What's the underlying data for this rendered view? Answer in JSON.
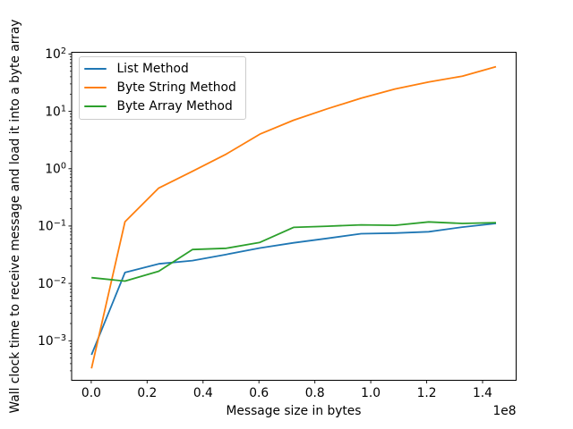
{
  "chart_data": {
    "type": "line",
    "title": "",
    "xlabel": "Message size in bytes",
    "ylabel": "Wall clock time to receive message and load it into a byte array",
    "x_offset_text": "1e8",
    "x_scale": "linear",
    "y_scale": "log",
    "grid": false,
    "legend_position": "upper left",
    "xlim": [
      -7000000,
      152000000
    ],
    "ylim": [
      0.000205,
      107
    ],
    "x_ticks": [
      0,
      20000000,
      40000000,
      60000000,
      80000000,
      100000000,
      120000000,
      140000000
    ],
    "x_tick_labels": [
      "0.0",
      "0.2",
      "0.4",
      "0.6",
      "0.8",
      "1.0",
      "1.2",
      "1.4"
    ],
    "y_tick_exponents": [
      2,
      1,
      0,
      -1,
      -2,
      -3
    ],
    "y_tick_labels": [
      "10²",
      "10¹",
      "10⁰",
      "10⁻¹",
      "10⁻²",
      "10⁻³"
    ],
    "x": [
      100000,
      12100000,
      24150000,
      36200000,
      48300000,
      60350000,
      72400000,
      84500000,
      96550000,
      108600000,
      120700000,
      132750000,
      144800000
    ],
    "series": [
      {
        "name": "List Method",
        "color": "#1f77b4",
        "values": [
          0.00057,
          0.0155,
          0.022,
          0.025,
          0.032,
          0.0415,
          0.051,
          0.061,
          0.0735,
          0.0755,
          0.0795,
          0.096,
          0.111
        ]
      },
      {
        "name": "Byte String Method",
        "color": "#ff7f0e",
        "values": [
          0.00033,
          0.119,
          0.46,
          0.9,
          1.8,
          4.0,
          7.0,
          11.1,
          16.9,
          24.5,
          32.5,
          41,
          60
        ]
      },
      {
        "name": "Byte Array Method",
        "color": "#2ca02c",
        "values": [
          0.0126,
          0.011,
          0.0163,
          0.039,
          0.041,
          0.052,
          0.095,
          0.0995,
          0.105,
          0.103,
          0.118,
          0.111,
          0.115
        ]
      }
    ]
  }
}
